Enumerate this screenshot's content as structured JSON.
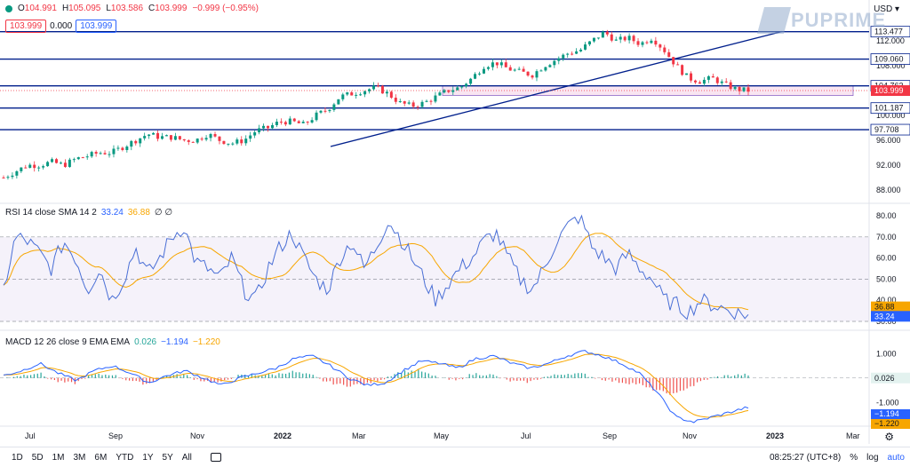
{
  "header": {
    "ohlc": [
      {
        "label": "O",
        "value": "104.991"
      },
      {
        "label": "H",
        "value": "105.095"
      },
      {
        "label": "L",
        "value": "103.586"
      },
      {
        "label": "C",
        "value": "103.999"
      }
    ],
    "change": "−0.999 (−0.95%)",
    "sell_price": "103.999",
    "spread": "0.000",
    "buy_price": "103.999",
    "currency": "USD",
    "brand": "PUPRIME"
  },
  "colors": {
    "up": "#089981",
    "down": "#f23645",
    "line": "#001f8c",
    "rsi": "#4a6fd6",
    "rsi_ma": "#f7a600",
    "macd": "#2962ff",
    "signal": "#f7a600"
  },
  "price_axis": {
    "ticks": [
      "112.000",
      "108.000",
      "104.000",
      "100.000",
      "96.000",
      "92.000",
      "88.000"
    ],
    "levels": [
      "113.477",
      "109.060",
      "104.763",
      "101.187",
      "97.708"
    ],
    "last_price": "103.999"
  },
  "rsi": {
    "label": "RSI 14 close SMA 14 2",
    "value": "33.24",
    "ma_value": "36.88",
    "extra": "∅ ∅",
    "ticks": [
      "80.00",
      "70.00",
      "60.00",
      "50.00",
      "40.00",
      "30.00"
    ]
  },
  "macd": {
    "label": "MACD 12 26 close 9 EMA EMA",
    "hist": "0.026",
    "macd": "−1.194",
    "signal": "−1.220",
    "ticks": [
      "1.000",
      "-1.000"
    ]
  },
  "time_axis": [
    "Jul",
    "Sep",
    "Nov",
    "2022",
    "Mar",
    "May",
    "Jul",
    "Sep",
    "Nov",
    "2023",
    "Mar"
  ],
  "toolbar": {
    "timeframes": [
      "1D",
      "5D",
      "1M",
      "3M",
      "6M",
      "YTD",
      "1Y",
      "5Y",
      "All"
    ],
    "clock": "08:25:27 (UTC+8)",
    "percent": "%",
    "log": "log",
    "auto": "auto"
  },
  "chart_data": {
    "type": "candlestick",
    "price_series_approx": [
      90,
      91,
      92,
      92,
      92.5,
      92,
      93,
      93.5,
      94,
      94,
      95,
      96,
      97,
      96.5,
      96.5,
      96,
      96,
      97,
      96,
      95.5,
      96,
      97.5,
      98,
      99,
      99,
      98.5,
      100,
      101,
      103,
      103.5,
      104,
      104.5,
      103.5,
      102,
      101.5,
      102,
      103,
      104,
      104.5,
      106,
      108,
      108.5,
      107.5,
      107,
      106.5,
      108,
      109,
      110,
      110.5,
      112,
      113.4,
      112,
      112.5,
      111.5,
      112.5,
      110.5,
      108,
      106,
      105.5,
      106,
      105,
      104.2,
      104
    ],
    "levels": [
      113.477,
      109.06,
      104.763,
      101.187,
      97.708
    ],
    "rsi_series_approx": [
      45,
      70,
      68,
      62,
      55,
      68,
      60,
      45,
      55,
      40,
      50,
      65,
      52,
      60,
      70,
      75,
      58,
      55,
      50,
      60,
      45,
      40,
      55,
      65,
      72,
      60,
      50,
      45,
      60,
      68,
      55,
      65,
      78,
      70,
      60,
      50,
      40,
      48,
      55,
      60,
      68,
      72,
      60,
      50,
      45,
      55,
      68,
      75,
      80,
      65,
      60,
      55,
      62,
      55,
      50,
      40,
      38,
      34,
      40,
      38,
      36,
      34,
      33.24
    ],
    "macd_series_approx": [
      0.1,
      0.3,
      0.6,
      0.2,
      -0.1,
      0.3,
      0.5,
      0.2,
      -0.2,
      0.1,
      0.3,
      0.0,
      -0.3,
      0.0,
      0.2,
      0.4,
      0.8,
      0.9,
      0.5,
      0.0,
      -0.3,
      -0.2,
      0.3,
      0.7,
      0.6,
      0.4,
      0.8,
      0.9,
      0.6,
      0.4,
      0.6,
      0.9,
      1.1,
      0.9,
      0.6,
      0.2,
      -0.6,
      -1.6,
      -1.8,
      -1.6,
      -1.4,
      -1.194
    ]
  }
}
